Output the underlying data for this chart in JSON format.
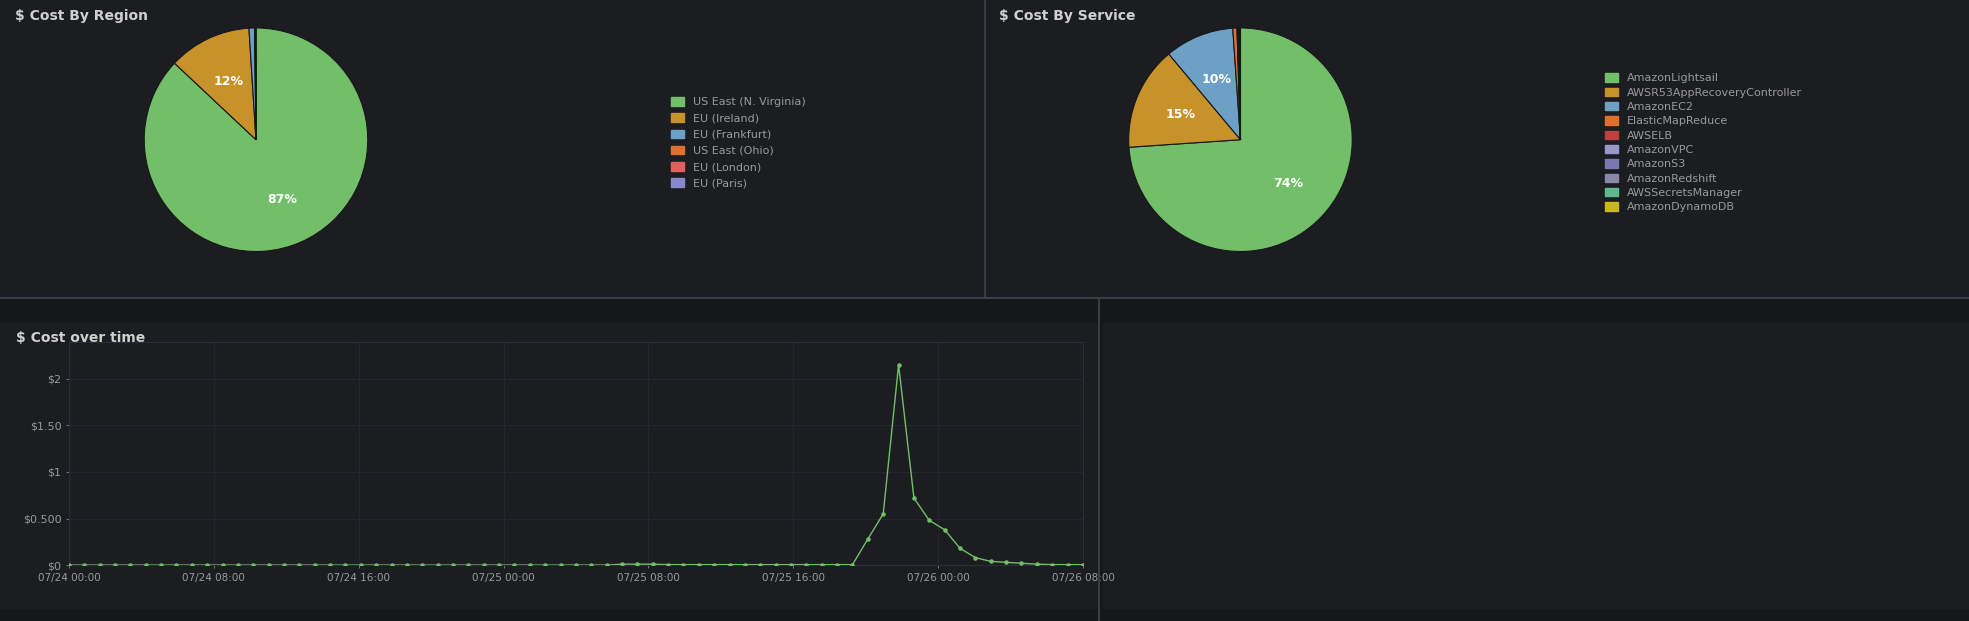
{
  "background_color": "#161719",
  "panel_bg": "#1c1d21",
  "text_color": "#9a9a9a",
  "title_color": "#d0d0d0",
  "grid_color": "#2c2e38",
  "region_title": "$ Cost By Region",
  "region_labels": [
    "US East (N. Virginia)",
    "EU (Ireland)",
    "EU (Frankfurt)",
    "US East (Ohio)",
    "EU (London)",
    "EU (Paris)"
  ],
  "region_values": [
    87,
    12,
    0.8,
    0.1,
    0.05,
    0.05
  ],
  "region_colors": [
    "#73bf69",
    "#c8922a",
    "#6e9fc5",
    "#e07030",
    "#e06060",
    "#8888cc"
  ],
  "region_pct_labels": [
    "87%",
    "12%",
    "",
    "",
    "",
    ""
  ],
  "service_title": "$ Cost By Service",
  "service_labels": [
    "AmazonLightsail",
    "AWSR53AppRecoveryController",
    "AmazonEC2",
    "ElasticMapReduce",
    "AWSELB",
    "AmazonVPC",
    "AmazonS3",
    "AmazonRedshift",
    "AWSSecretsManager",
    "AmazonDynamoDB"
  ],
  "service_values": [
    74,
    15,
    10,
    0.6,
    0.1,
    0.1,
    0.1,
    0.1,
    0.05,
    0.05
  ],
  "service_colors": [
    "#73bf69",
    "#c8922a",
    "#6e9fc5",
    "#e07030",
    "#c04040",
    "#9898c8",
    "#7878b0",
    "#8888a8",
    "#60b890",
    "#c8b818"
  ],
  "service_pct_labels": [
    "74%",
    "15%",
    "10%",
    "",
    "",
    "",
    "",
    "",
    "",
    ""
  ],
  "timeseries_title": "$ Cost over time",
  "ts_ylabel_ticks": [
    "$0",
    "$0.500",
    "$1",
    "$1.50",
    "$2"
  ],
  "ts_ylabel_vals": [
    0,
    0.5,
    1.0,
    1.5,
    2.0
  ],
  "ts_ylim": [
    0,
    2.4
  ],
  "ts_line_color": "#73bf69",
  "ts_dot_color": "#73bf69",
  "ts_xlabels": [
    "07/24 00:00",
    "07/24 08:00",
    "07/24 16:00",
    "07/25 00:00",
    "07/25 08:00",
    "07/25 16:00",
    "07/26 00:00",
    "07/26 08:00"
  ],
  "ts_x": [
    0,
    1,
    2,
    3,
    4,
    5,
    6,
    7,
    8,
    9,
    10,
    11,
    12,
    13,
    14,
    15,
    16,
    17,
    18,
    19,
    20,
    21,
    22,
    23,
    24,
    25,
    26,
    27,
    28,
    29,
    30,
    31,
    32,
    33,
    34,
    35,
    36,
    37,
    38,
    39,
    40,
    41,
    42,
    43,
    44,
    45,
    46,
    47,
    48,
    49,
    50,
    51,
    52,
    53,
    54,
    55,
    56,
    57,
    58,
    59,
    60,
    61,
    62,
    63,
    64,
    65,
    66
  ],
  "ts_y": [
    0,
    0,
    0,
    0,
    0,
    0,
    0,
    0,
    0,
    0,
    0,
    0,
    0,
    0,
    0,
    0,
    0,
    0,
    0,
    0,
    0,
    0,
    0,
    0,
    0,
    0,
    0,
    0,
    0,
    0,
    0,
    0,
    0,
    0,
    0,
    0,
    0.01,
    0.01,
    0.01,
    0.005,
    0.005,
    0.005,
    0.005,
    0.005,
    0.005,
    0.005,
    0.005,
    0.005,
    0.005,
    0.005,
    0.005,
    0.005,
    0.28,
    0.55,
    2.15,
    0.72,
    0.48,
    0.38,
    0.18,
    0.08,
    0.04,
    0.03,
    0.02,
    0.01,
    0.005,
    0.005,
    0.005
  ]
}
